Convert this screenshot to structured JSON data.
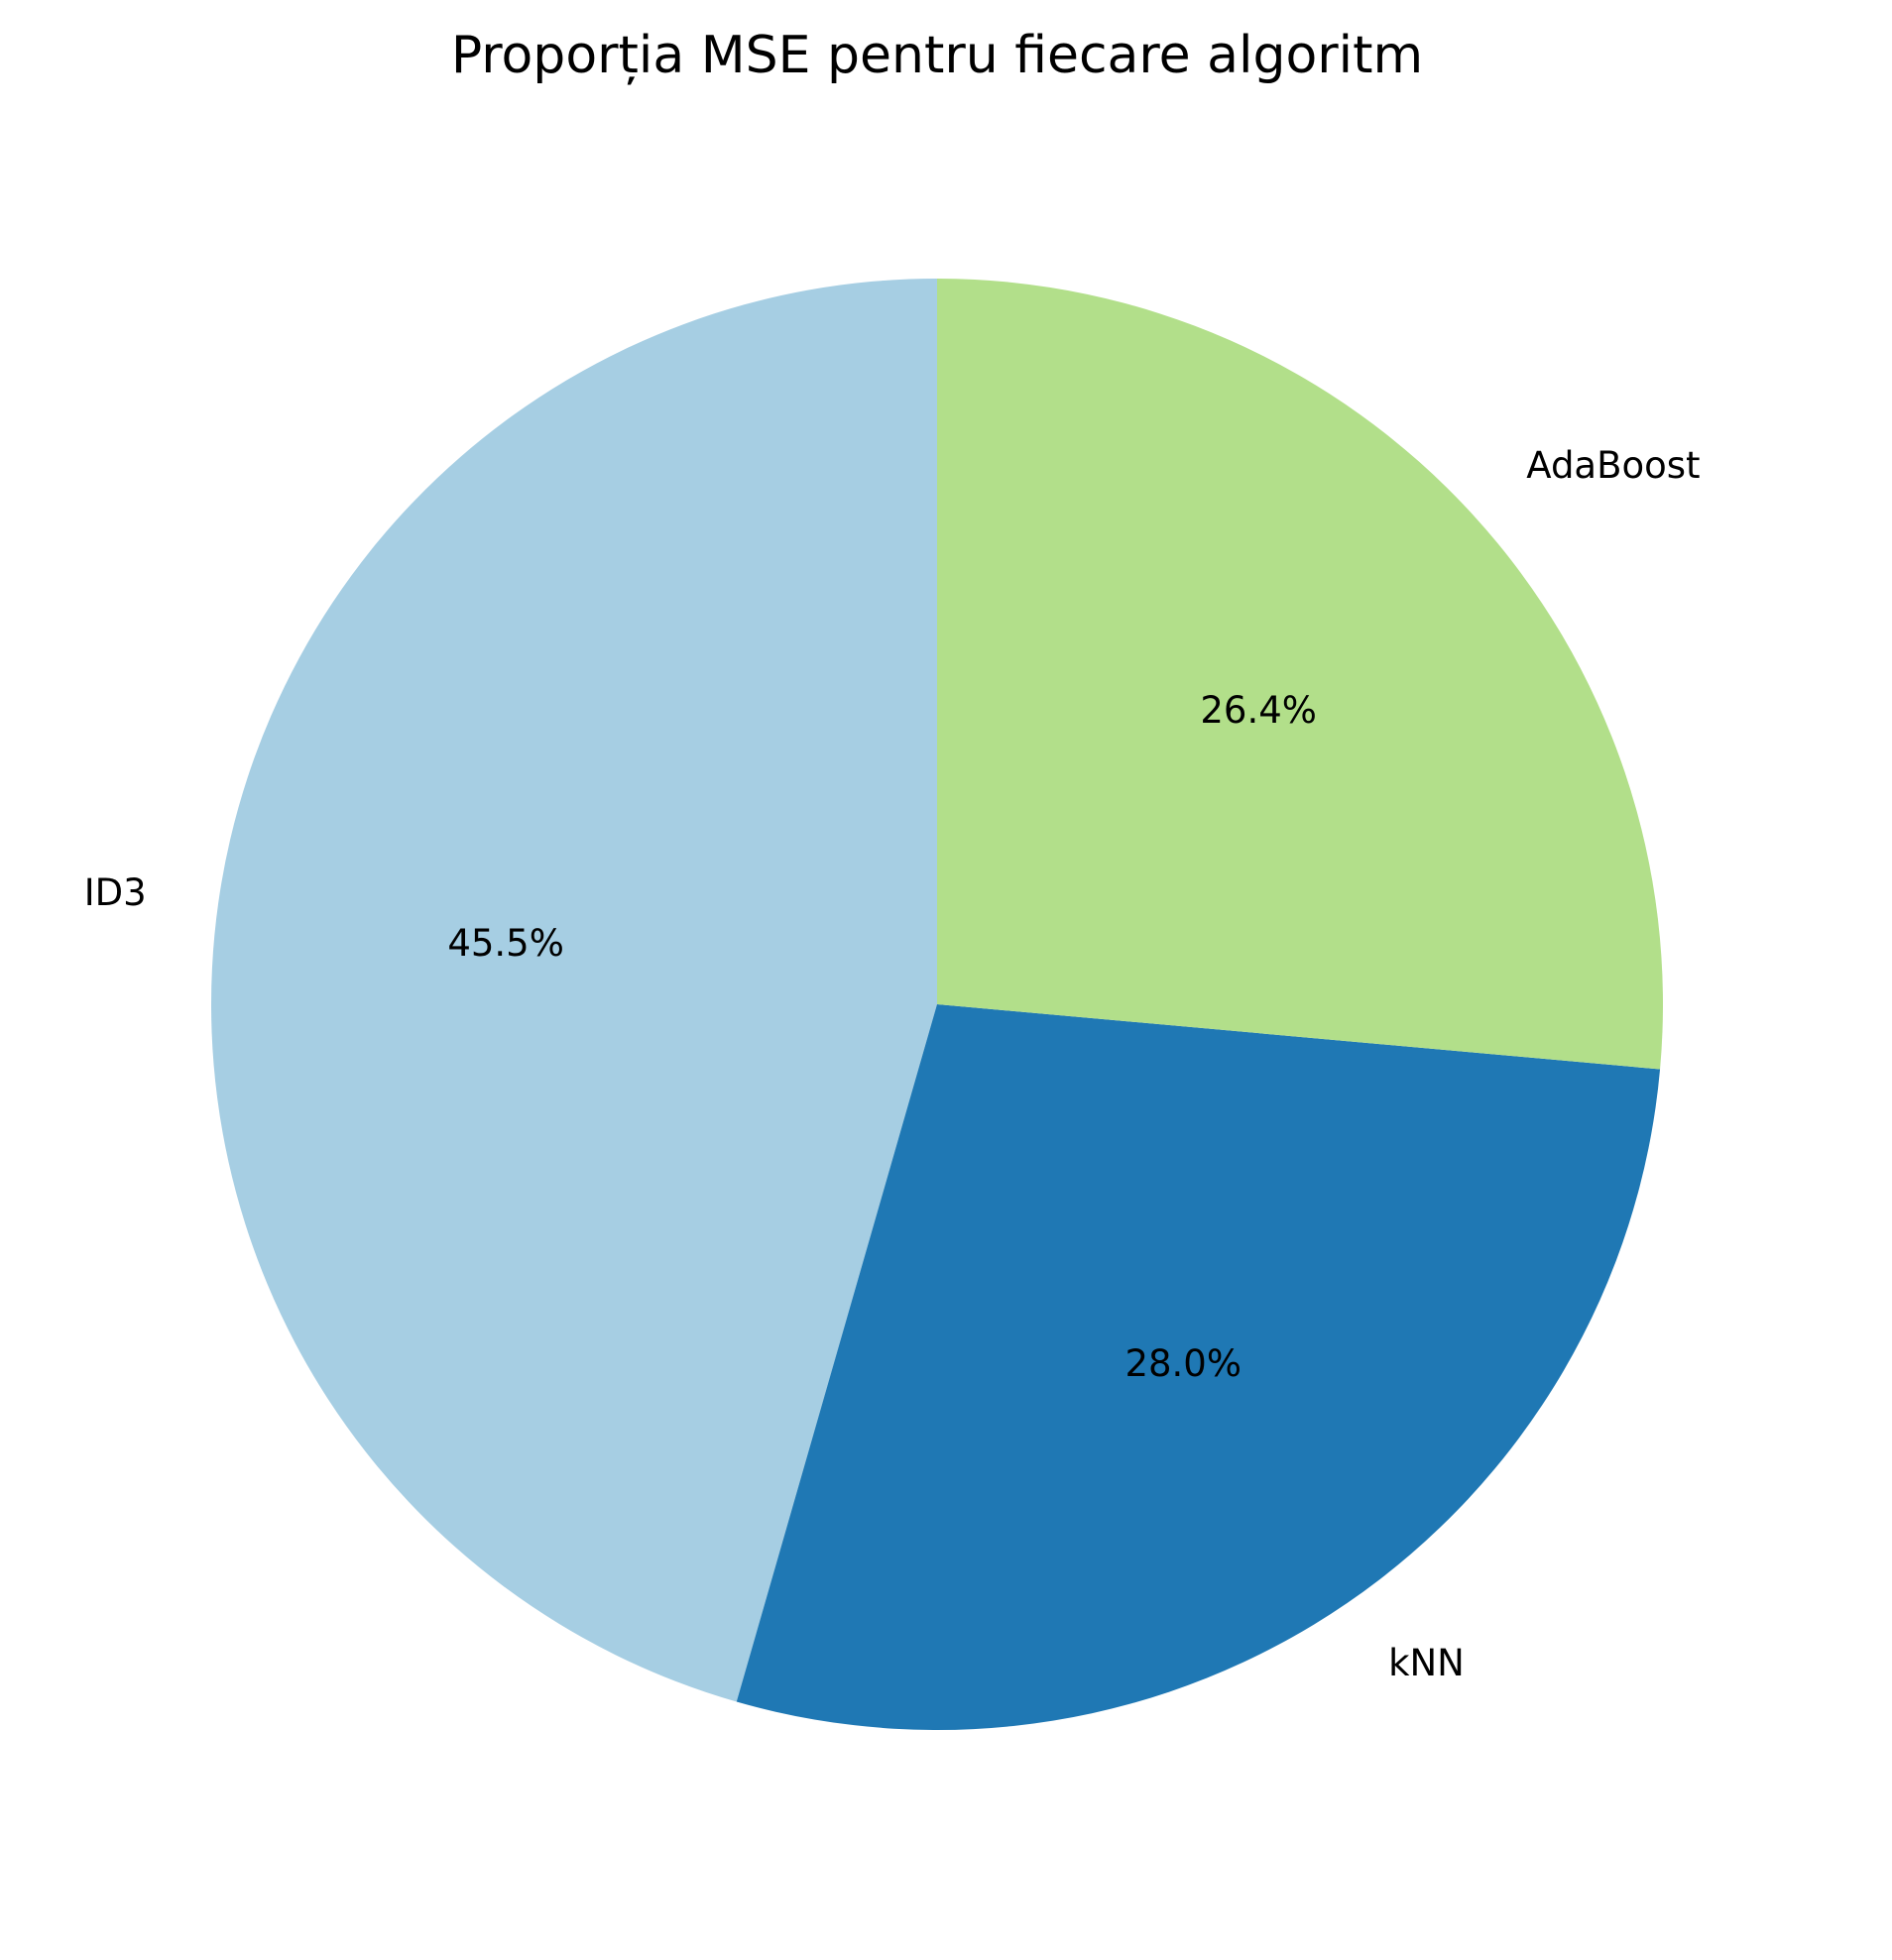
{
  "chart_data": {
    "type": "pie",
    "title": "Proporția MSE pentru fiecare algoritm",
    "start_angle_deg": 90,
    "direction": "counterclockwise",
    "slices": [
      {
        "label": "ID3",
        "value": 45.5,
        "pct_label": "45.5%",
        "color": "#a6cee3"
      },
      {
        "label": "kNN",
        "value": 28.0,
        "pct_label": "28.0%",
        "color": "#1f78b4"
      },
      {
        "label": "AdaBoost",
        "value": 26.4,
        "pct_label": "26.4%",
        "color": "#b2df8a"
      }
    ]
  }
}
